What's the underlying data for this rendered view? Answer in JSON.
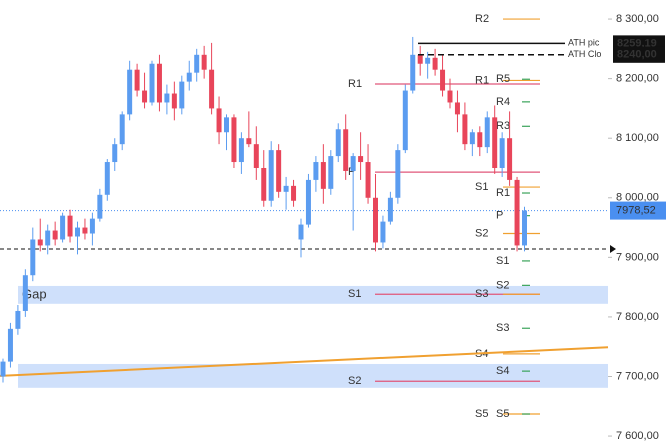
{
  "chart_data": {
    "type": "candlestick",
    "ylim": [
      7585,
      8332
    ],
    "yticks": [
      {
        "value": 8300,
        "label": "8 300,00"
      },
      {
        "value": 8200,
        "label": "8 200,00"
      },
      {
        "value": 8100,
        "label": "8 100,00"
      },
      {
        "value": 8000,
        "label": "8 000,00"
      },
      {
        "value": 7900,
        "label": "7 900,00"
      },
      {
        "value": 7800,
        "label": "7 800,00"
      },
      {
        "value": 7700,
        "label": "7 700,00"
      },
      {
        "value": 7600,
        "label": "7 600,00"
      }
    ],
    "up_color": "#5b9cf0",
    "down_color": "#e8455a",
    "candles": [
      [
        7700,
        7730,
        7690,
        7725
      ],
      [
        7725,
        7790,
        7715,
        7780
      ],
      [
        7780,
        7820,
        7770,
        7810
      ],
      [
        7810,
        7880,
        7800,
        7870
      ],
      [
        7870,
        7950,
        7860,
        7930
      ],
      [
        7930,
        7965,
        7910,
        7920
      ],
      [
        7920,
        7955,
        7905,
        7945
      ],
      [
        7945,
        7960,
        7920,
        7930
      ],
      [
        7930,
        7975,
        7925,
        7970
      ],
      [
        7970,
        7980,
        7925,
        7935
      ],
      [
        7935,
        7960,
        7905,
        7950
      ],
      [
        7950,
        7965,
        7930,
        7940
      ],
      [
        7940,
        7975,
        7920,
        7965
      ],
      [
        7965,
        8015,
        7960,
        8005
      ],
      [
        8005,
        8065,
        7995,
        8060
      ],
      [
        8060,
        8100,
        8045,
        8090
      ],
      [
        8090,
        8145,
        8080,
        8140
      ],
      [
        8140,
        8230,
        8130,
        8215
      ],
      [
        8215,
        8225,
        8170,
        8180
      ],
      [
        8180,
        8210,
        8150,
        8160
      ],
      [
        8160,
        8230,
        8155,
        8225
      ],
      [
        8225,
        8240,
        8145,
        8160
      ],
      [
        8160,
        8190,
        8140,
        8175
      ],
      [
        8175,
        8195,
        8130,
        8150
      ],
      [
        8150,
        8205,
        8140,
        8195
      ],
      [
        8195,
        8230,
        8180,
        8210
      ],
      [
        8210,
        8250,
        8195,
        8240
      ],
      [
        8240,
        8255,
        8200,
        8215
      ],
      [
        8215,
        8260,
        8140,
        8150
      ],
      [
        8150,
        8170,
        8090,
        8110
      ],
      [
        8110,
        8140,
        8080,
        8135
      ],
      [
        8135,
        8140,
        8050,
        8060
      ],
      [
        8060,
        8110,
        8040,
        8100
      ],
      [
        8100,
        8145,
        8085,
        8090
      ],
      [
        8090,
        8120,
        8030,
        8050
      ],
      [
        8050,
        8080,
        7985,
        7995
      ],
      [
        7995,
        8095,
        7985,
        8080
      ],
      [
        8080,
        8090,
        8000,
        8010
      ],
      [
        8010,
        8035,
        7980,
        8020
      ],
      [
        8020,
        8030,
        7985,
        7995
      ],
      [
        7930,
        7965,
        7900,
        7955
      ],
      [
        7955,
        8040,
        7950,
        8030
      ],
      [
        8030,
        8070,
        8010,
        8060
      ],
      [
        8060,
        8090,
        7990,
        8015
      ],
      [
        8015,
        8080,
        8005,
        8070
      ],
      [
        8070,
        8125,
        8060,
        8115
      ],
      [
        8115,
        8140,
        8030,
        8045
      ],
      [
        8045,
        8075,
        7945,
        8070
      ],
      [
        8070,
        8110,
        8030,
        8060
      ],
      [
        8060,
        8090,
        7990,
        8000
      ],
      [
        8000,
        8040,
        7910,
        7925
      ],
      [
        7925,
        7970,
        7915,
        7960
      ],
      [
        7960,
        8010,
        7955,
        8000
      ],
      [
        8000,
        8090,
        7990,
        8080
      ],
      [
        8080,
        8190,
        8075,
        8180
      ],
      [
        8180,
        8270,
        8175,
        8240
      ],
      [
        8240,
        8255,
        8205,
        8225
      ],
      [
        8225,
        8245,
        8200,
        8235
      ],
      [
        8235,
        8250,
        8205,
        8215
      ],
      [
        8215,
        8240,
        8170,
        8180
      ],
      [
        8180,
        8200,
        8150,
        8160
      ],
      [
        8160,
        8180,
        8110,
        8140
      ],
      [
        8140,
        8160,
        8080,
        8090
      ],
      [
        8090,
        8115,
        8070,
        8110
      ],
      [
        8110,
        8120,
        8070,
        8085
      ],
      [
        8085,
        8145,
        8075,
        8135
      ],
      [
        8135,
        8155,
        8040,
        8050
      ],
      [
        8050,
        8110,
        8035,
        8100
      ],
      [
        8100,
        8145,
        8020,
        8030
      ],
      [
        8030,
        8035,
        7910,
        7920
      ],
      [
        7920,
        7985,
        7910,
        7978.52
      ]
    ],
    "gaps": [
      {
        "label": "Gap",
        "from": 7852,
        "to": 7822
      },
      {
        "from": 7721,
        "to": 7681
      }
    ],
    "gap_color": "#cfe0fb",
    "trend_line": {
      "color": "#f0a030",
      "values": [
        7701,
        7749
      ]
    },
    "pivot_sets": [
      {
        "color": "#e0577a",
        "levels": [
          {
            "label": "R1",
            "value": 8191
          },
          {
            "label": "P",
            "value": 8043
          },
          {
            "label": "S1",
            "value": 7838
          },
          {
            "label": "S2",
            "value": 7692
          }
        ]
      },
      {
        "color": "#f0a030",
        "levels": [
          {
            "label": "R2",
            "value": 8300
          },
          {
            "label": "R1",
            "value": 8197
          },
          {
            "label": "S1",
            "value": 8018
          },
          {
            "label": "S2",
            "value": 7940
          },
          {
            "label": "S3",
            "value": 7838
          },
          {
            "label": "S4",
            "value": 7738
          },
          {
            "label": "S5",
            "value": 7637
          }
        ]
      },
      {
        "color": "#3aa35a",
        "levels": [
          {
            "label": "R5",
            "value": 8199
          },
          {
            "label": "R4",
            "value": 8161
          },
          {
            "label": "R3",
            "value": 8120
          },
          {
            "label": "R1",
            "value": 8008
          },
          {
            "label": "P",
            "value": 7970
          },
          {
            "label": "S1",
            "value": 7894
          },
          {
            "label": "S2",
            "value": 7853
          },
          {
            "label": "S3",
            "value": 7781
          },
          {
            "label": "S4",
            "value": 7709
          },
          {
            "label": "S5",
            "value": 7637
          }
        ]
      }
    ],
    "ath_lines": [
      {
        "label": "ATH pic",
        "value": 8259.19,
        "value_label": "8259,19"
      },
      {
        "label": "ATH Clo",
        "value": 8240,
        "value_label": "8240,00"
      }
    ],
    "last_price": {
      "value": 7978.52,
      "value_label": "7978,52",
      "color": "#4a8ff0"
    },
    "marker_line": {
      "value": 7914
    }
  }
}
